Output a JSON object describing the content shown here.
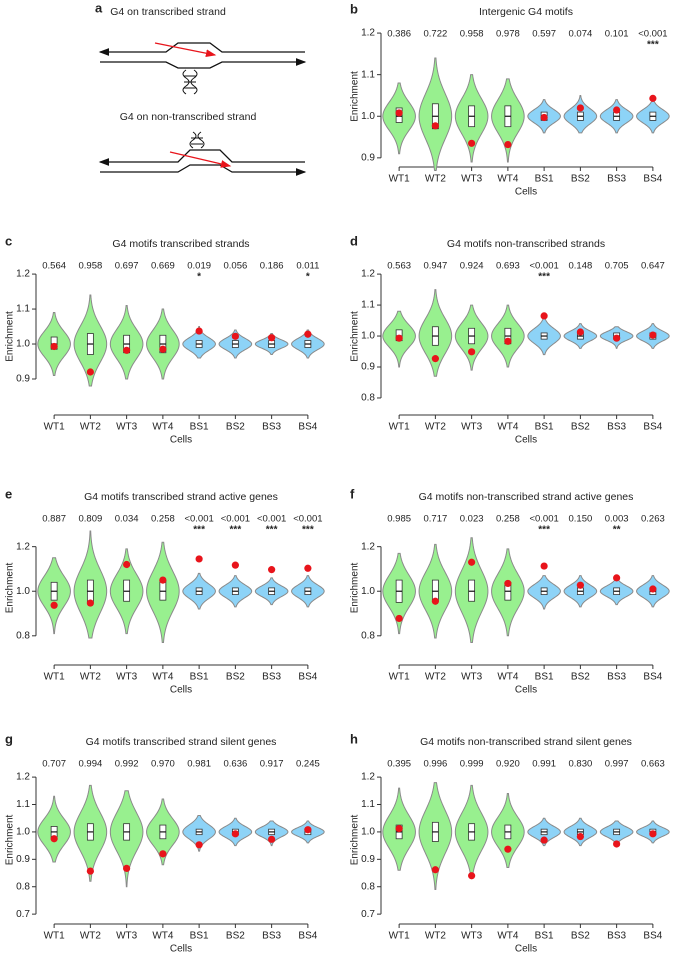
{
  "diagram": {
    "panel": "a",
    "titles": [
      "G4 on transcribed strand",
      "G4 on non-transcribed strand"
    ]
  },
  "chart_data": [
    {
      "type": "violin",
      "panel": "b",
      "title": "Intergenic G4 motifs",
      "xlabel": "Cells",
      "ylabel": "Enrichment",
      "categories": [
        "WT1",
        "WT2",
        "WT3",
        "WT4",
        "BS1",
        "BS2",
        "BS3",
        "BS4"
      ],
      "colors": [
        "#98f08f",
        "#98f08f",
        "#98f08f",
        "#98f08f",
        "#8dd3f7",
        "#8dd3f7",
        "#8dd3f7",
        "#8dd3f7"
      ],
      "observed_color": "#e8141b",
      "p_values": [
        "0.386",
        "0.722",
        "0.958",
        "0.978",
        "0.597",
        "0.074",
        "0.101",
        "<0.001"
      ],
      "significance": [
        null,
        null,
        null,
        null,
        null,
        null,
        null,
        "***"
      ],
      "min": [
        0.91,
        0.87,
        0.89,
        0.89,
        0.96,
        0.96,
        0.96,
        0.96
      ],
      "max": [
        1.08,
        1.14,
        1.1,
        1.09,
        1.04,
        1.05,
        1.04,
        1.04
      ],
      "q1": [
        0.985,
        0.97,
        0.975,
        0.975,
        0.99,
        0.99,
        0.99,
        0.99
      ],
      "median": [
        1.0,
        1.0,
        1.0,
        1.0,
        1.0,
        1.0,
        1.0,
        1.0
      ],
      "q3": [
        1.02,
        1.03,
        1.025,
        1.025,
        1.01,
        1.01,
        1.01,
        1.01
      ],
      "observed": [
        1.008,
        0.977,
        0.935,
        0.932,
        0.997,
        1.02,
        1.015,
        1.043
      ],
      "ylim": [
        0.878,
        1.217
      ],
      "yticks": [
        0.9,
        {
          "value": 1,
          "label": "1.0"
        },
        1.1,
        1.2
      ]
    },
    {
      "type": "violin",
      "panel": "c",
      "title": "G4 motifs transcribed strands",
      "xlabel": "Cells",
      "ylabel": "Enrichment",
      "categories": [
        "WT1",
        "WT2",
        "WT3",
        "WT4",
        "BS1",
        "BS2",
        "BS3",
        "BS4"
      ],
      "colors": [
        "#98f08f",
        "#98f08f",
        "#98f08f",
        "#98f08f",
        "#8dd3f7",
        "#8dd3f7",
        "#8dd3f7",
        "#8dd3f7"
      ],
      "observed_color": "#e8141b",
      "p_values": [
        "0.564",
        "0.958",
        "0.697",
        "0.669",
        "0.019",
        "0.056",
        "0.186",
        "0.011"
      ],
      "significance": [
        null,
        null,
        null,
        null,
        "*",
        null,
        null,
        "*"
      ],
      "min": [
        0.91,
        0.88,
        0.9,
        0.9,
        0.96,
        0.96,
        0.97,
        0.96
      ],
      "max": [
        1.09,
        1.14,
        1.11,
        1.1,
        1.05,
        1.04,
        1.03,
        1.04
      ],
      "q1": [
        0.985,
        0.97,
        0.975,
        0.975,
        0.99,
        0.99,
        0.99,
        0.99
      ],
      "median": [
        1.0,
        1.0,
        1.0,
        1.0,
        1.0,
        1.0,
        1.0,
        1.0
      ],
      "q3": [
        1.02,
        1.03,
        1.025,
        1.025,
        1.01,
        1.01,
        1.01,
        1.01
      ],
      "observed": [
        0.993,
        0.92,
        0.982,
        0.985,
        1.037,
        1.022,
        1.018,
        1.028
      ],
      "ylim": [
        0.797,
        1.246
      ],
      "yticks": [
        0.9,
        {
          "value": 1,
          "label": "1.0"
        },
        1.1,
        1.2
      ]
    },
    {
      "type": "violin",
      "panel": "d",
      "title": "G4 motifs non-transcribed strands",
      "xlabel": "Cells",
      "ylabel": "Enrichment",
      "categories": [
        "WT1",
        "WT2",
        "WT3",
        "WT4",
        "BS1",
        "BS2",
        "BS3",
        "BS4"
      ],
      "colors": [
        "#98f08f",
        "#98f08f",
        "#98f08f",
        "#98f08f",
        "#8dd3f7",
        "#8dd3f7",
        "#8dd3f7",
        "#8dd3f7"
      ],
      "observed_color": "#e8141b",
      "p_values": [
        "0.563",
        "0.947",
        "0.924",
        "0.693",
        "<0.001",
        "0.148",
        "0.705",
        "0.647"
      ],
      "significance": [
        null,
        null,
        null,
        null,
        "***",
        null,
        null,
        null
      ],
      "min": [
        0.9,
        0.87,
        0.89,
        0.9,
        0.94,
        0.96,
        0.96,
        0.96
      ],
      "max": [
        1.08,
        1.15,
        1.1,
        1.1,
        1.06,
        1.04,
        1.03,
        1.04
      ],
      "q1": [
        0.985,
        0.97,
        0.975,
        0.975,
        0.99,
        0.99,
        0.99,
        0.99
      ],
      "median": [
        1.0,
        1.0,
        1.0,
        1.0,
        1.0,
        1.0,
        1.0,
        1.0
      ],
      "q3": [
        1.02,
        1.03,
        1.025,
        1.025,
        1.01,
        1.01,
        1.01,
        1.01
      ],
      "observed": [
        0.993,
        0.927,
        0.949,
        0.983,
        1.065,
        1.013,
        0.993,
        1.003
      ],
      "ylim": [
        0.745,
        1.252
      ],
      "yticks": [
        0.8,
        0.9,
        {
          "value": 1,
          "label": "1.0"
        },
        1.1,
        1.2
      ]
    },
    {
      "type": "violin",
      "panel": "e",
      "title": "G4 motifs transcribed strand active genes",
      "xlabel": "Cells",
      "ylabel": "Enrichment",
      "categories": [
        "WT1",
        "WT2",
        "WT3",
        "WT4",
        "BS1",
        "BS2",
        "BS3",
        "BS4"
      ],
      "colors": [
        "#98f08f",
        "#98f08f",
        "#98f08f",
        "#98f08f",
        "#8dd3f7",
        "#8dd3f7",
        "#8dd3f7",
        "#8dd3f7"
      ],
      "observed_color": "#e8141b",
      "p_values": [
        "0.887",
        "0.809",
        "0.034",
        "0.258",
        "<0.001",
        "<0.001",
        "<0.001",
        "<0.001"
      ],
      "significance": [
        null,
        null,
        null,
        null,
        "***",
        "***",
        "***",
        "***"
      ],
      "min": [
        0.81,
        0.79,
        0.81,
        0.77,
        0.92,
        0.93,
        0.94,
        0.93
      ],
      "max": [
        1.15,
        1.27,
        1.19,
        1.22,
        1.08,
        1.07,
        1.06,
        1.07
      ],
      "q1": [
        0.96,
        0.95,
        0.955,
        0.96,
        0.985,
        0.985,
        0.985,
        0.985
      ],
      "median": [
        1.0,
        1.0,
        1.0,
        1.0,
        1.0,
        1.0,
        1.0,
        1.0
      ],
      "q3": [
        1.04,
        1.05,
        1.05,
        1.05,
        1.015,
        1.015,
        1.015,
        1.015
      ],
      "observed": [
        0.937,
        0.947,
        1.12,
        1.05,
        1.145,
        1.117,
        1.097,
        1.103
      ],
      "ylim": [
        0.669,
        1.36
      ],
      "yticks": [
        0.8,
        {
          "value": 1,
          "label": "1.0"
        },
        1.2
      ]
    },
    {
      "type": "violin",
      "panel": "f",
      "title": "G4 motifs non-transcribed strand active genes",
      "xlabel": "Cells",
      "ylabel": "Enrichment",
      "categories": [
        "WT1",
        "WT2",
        "WT3",
        "WT4",
        "BS1",
        "BS2",
        "BS3",
        "BS4"
      ],
      "colors": [
        "#98f08f",
        "#98f08f",
        "#98f08f",
        "#98f08f",
        "#8dd3f7",
        "#8dd3f7",
        "#8dd3f7",
        "#8dd3f7"
      ],
      "observed_color": "#e8141b",
      "p_values": [
        "0.985",
        "0.717",
        "0.023",
        "0.258",
        "<0.001",
        "0.150",
        "0.003",
        "0.263"
      ],
      "significance": [
        null,
        null,
        null,
        null,
        "***",
        null,
        "**",
        null
      ],
      "min": [
        0.81,
        0.79,
        0.77,
        0.8,
        0.92,
        0.93,
        0.94,
        0.93
      ],
      "max": [
        1.17,
        1.21,
        1.24,
        1.19,
        1.07,
        1.07,
        1.06,
        1.07
      ],
      "q1": [
        0.95,
        0.955,
        0.955,
        0.96,
        0.985,
        0.985,
        0.985,
        0.985
      ],
      "median": [
        1.0,
        1.0,
        1.0,
        1.0,
        1.0,
        1.0,
        1.0,
        1.0
      ],
      "q3": [
        1.05,
        1.05,
        1.05,
        1.04,
        1.015,
        1.015,
        1.015,
        1.015
      ],
      "observed": [
        0.878,
        0.955,
        1.13,
        1.035,
        1.113,
        1.027,
        1.06,
        1.01
      ],
      "ylim": [
        0.669,
        1.36
      ],
      "yticks": [
        0.8,
        {
          "value": 1,
          "label": "1.0"
        },
        1.2
      ]
    },
    {
      "type": "violin",
      "panel": "g",
      "title": "G4 motifs transcribed strand silent genes",
      "xlabel": "Cells",
      "ylabel": "Enrichment",
      "categories": [
        "WT1",
        "WT2",
        "WT3",
        "WT4",
        "BS1",
        "BS2",
        "BS3",
        "BS4"
      ],
      "colors": [
        "#98f08f",
        "#98f08f",
        "#98f08f",
        "#98f08f",
        "#8dd3f7",
        "#8dd3f7",
        "#8dd3f7",
        "#8dd3f7"
      ],
      "observed_color": "#e8141b",
      "p_values": [
        "0.707",
        "0.994",
        "0.992",
        "0.970",
        "0.981",
        "0.636",
        "0.917",
        "0.245"
      ],
      "significance": [
        null,
        null,
        null,
        null,
        null,
        null,
        null,
        null
      ],
      "min": [
        0.89,
        0.82,
        0.8,
        0.88,
        0.93,
        0.95,
        0.95,
        0.96
      ],
      "max": [
        1.13,
        1.17,
        1.15,
        1.12,
        1.06,
        1.05,
        1.04,
        1.04
      ],
      "q1": [
        0.98,
        0.97,
        0.97,
        0.975,
        0.99,
        0.99,
        0.99,
        0.99
      ],
      "median": [
        1.0,
        1.0,
        1.0,
        1.0,
        1.0,
        1.0,
        1.0,
        1.0
      ],
      "q3": [
        1.02,
        1.03,
        1.03,
        1.025,
        1.01,
        1.01,
        1.01,
        1.01
      ],
      "observed": [
        0.975,
        0.857,
        0.867,
        0.92,
        0.953,
        0.993,
        0.973,
        1.008
      ],
      "ylim": [
        0.664,
        1.277
      ],
      "yticks": [
        0.7,
        0.8,
        0.9,
        {
          "value": 1,
          "label": "1.0"
        },
        1.1,
        1.2
      ]
    },
    {
      "type": "violin",
      "panel": "h",
      "title": "G4 motifs non-transcribed strand silent genes",
      "xlabel": "Cells",
      "ylabel": "Enrichment",
      "categories": [
        "WT1",
        "WT2",
        "WT3",
        "WT4",
        "BS1",
        "BS2",
        "BS3",
        "BS4"
      ],
      "colors": [
        "#98f08f",
        "#98f08f",
        "#98f08f",
        "#98f08f",
        "#8dd3f7",
        "#8dd3f7",
        "#8dd3f7",
        "#8dd3f7"
      ],
      "observed_color": "#e8141b",
      "p_values": [
        "0.395",
        "0.996",
        "0.999",
        "0.920",
        "0.991",
        "0.830",
        "0.997",
        "0.663"
      ],
      "significance": [
        null,
        null,
        null,
        null,
        null,
        null,
        null,
        null
      ],
      "min": [
        0.86,
        0.79,
        0.83,
        0.87,
        0.95,
        0.95,
        0.95,
        0.96
      ],
      "max": [
        1.16,
        1.18,
        1.17,
        1.14,
        1.05,
        1.05,
        1.04,
        1.04
      ],
      "q1": [
        0.975,
        0.965,
        0.97,
        0.975,
        0.99,
        0.99,
        0.99,
        0.99
      ],
      "median": [
        1.0,
        1.0,
        1.0,
        1.0,
        1.0,
        1.0,
        1.0,
        1.0
      ],
      "q3": [
        1.025,
        1.035,
        1.03,
        1.025,
        1.01,
        1.01,
        1.01,
        1.01
      ],
      "observed": [
        1.012,
        0.862,
        0.84,
        0.937,
        0.97,
        0.983,
        0.956,
        0.993
      ],
      "ylim": [
        0.664,
        1.277
      ],
      "yticks": [
        0.7,
        0.8,
        0.9,
        {
          "value": 1,
          "label": "1.0"
        },
        1.1,
        1.2
      ]
    }
  ]
}
